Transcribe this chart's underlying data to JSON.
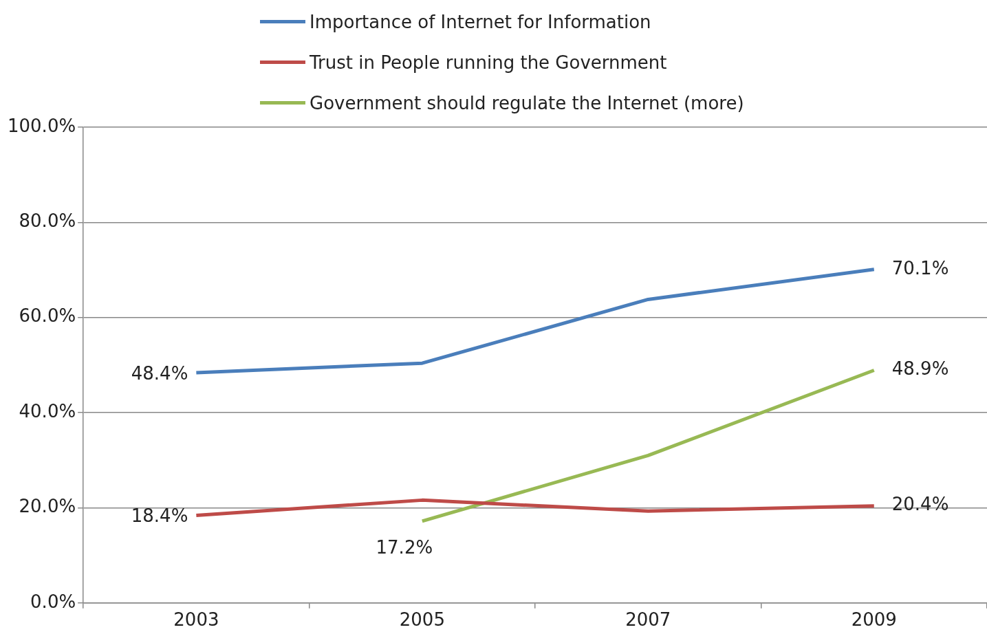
{
  "chart_data": {
    "type": "line",
    "categories": [
      "2003",
      "2005",
      "2007",
      "2009"
    ],
    "series": [
      {
        "name": "Importance of Internet for Information",
        "color": "#4a7ebb",
        "values": [
          48.4,
          50.4,
          63.8,
          70.1
        ],
        "value_labels": [
          "48.4%",
          null,
          null,
          "70.1%"
        ]
      },
      {
        "name": "Trust in People running the Government",
        "color": "#be4b48",
        "values": [
          18.4,
          21.6,
          19.3,
          20.4
        ],
        "value_labels": [
          "18.4%",
          null,
          null,
          "20.4%"
        ]
      },
      {
        "name": "Government should regulate the Internet (more)",
        "color": "#98b954",
        "values": [
          null,
          17.2,
          31.0,
          48.9
        ],
        "value_labels": [
          null,
          "17.2%",
          null,
          "48.9%"
        ]
      }
    ],
    "ylim": [
      0,
      100
    ],
    "yticks": [
      {
        "value": 0,
        "label": "0.0%"
      },
      {
        "value": 20,
        "label": "20.0%"
      },
      {
        "value": 40,
        "label": "40.0%"
      },
      {
        "value": 60,
        "label": "60.0%"
      },
      {
        "value": 80,
        "label": "80.0%"
      },
      {
        "value": 100,
        "label": "100.0%"
      }
    ],
    "grid": "y",
    "legend": "top",
    "marker": "none",
    "line_style": "solid"
  }
}
